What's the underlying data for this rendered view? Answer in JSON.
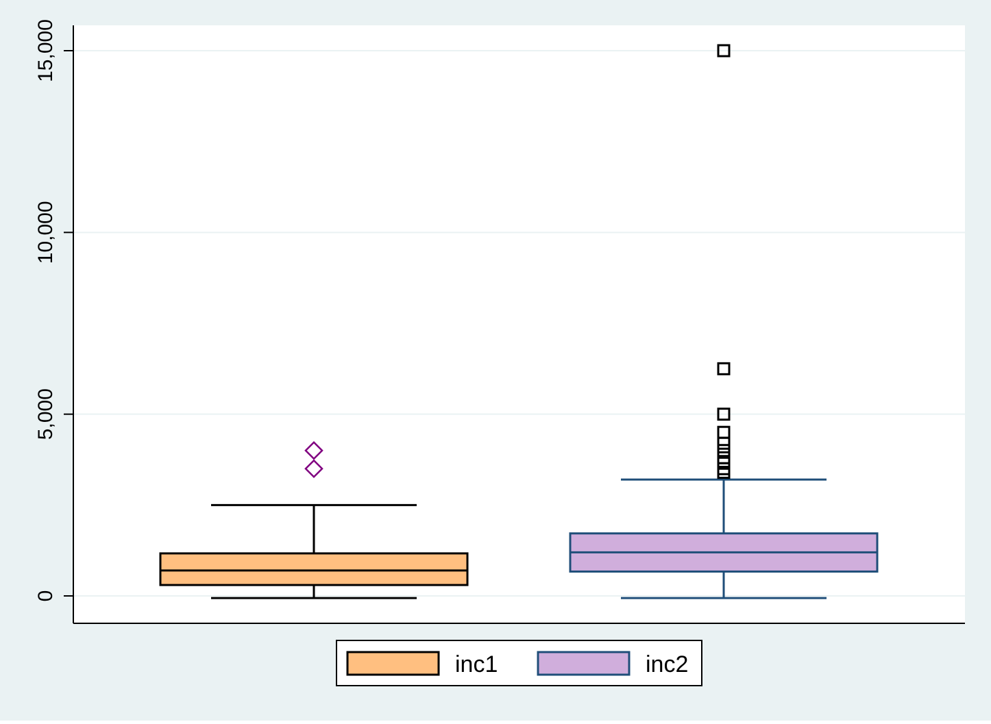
{
  "chart_data": {
    "type": "box",
    "title": "",
    "xlabel": "",
    "ylabel": "",
    "ylim": [
      -750,
      16000
    ],
    "yticks": [
      0,
      5000,
      10000,
      15000
    ],
    "ytick_labels": [
      "0",
      "5,000",
      "10,000",
      "15,000"
    ],
    "grid": true,
    "legend_position": "bottom-center",
    "series": [
      {
        "name": "inc1",
        "color": "#FFBF80",
        "edge_color": "#000000",
        "outlier_color": "#800080",
        "outlier_marker": "diamond",
        "whisker_low": -60,
        "q1": 300,
        "median": 700,
        "q3": 1170,
        "whisker_high": 2500,
        "outliers": [
          3500,
          4000
        ]
      },
      {
        "name": "inc2",
        "color": "#D0AEDC",
        "edge_color": "#1F4E79",
        "outlier_color": "#000000",
        "outlier_marker": "square",
        "whisker_low": -60,
        "q1": 670,
        "median": 1200,
        "q3": 1720,
        "whisker_high": 3200,
        "outliers": [
          3400,
          3500,
          3650,
          3800,
          4000,
          4200,
          4500,
          5000,
          6250,
          15000
        ]
      }
    ]
  },
  "colors": {
    "page_background": "#EAF2F3",
    "plot_background": "#FFFFFF",
    "gridline": "#EAF2F3",
    "axis": "#000000"
  }
}
